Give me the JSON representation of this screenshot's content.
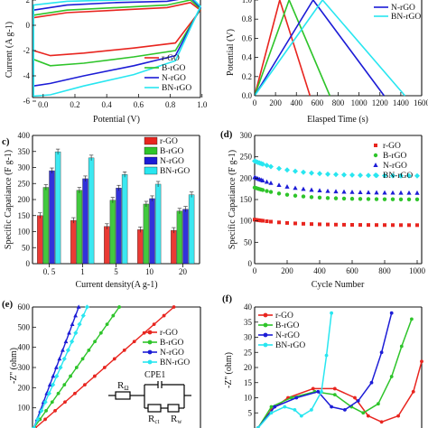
{
  "panels": {
    "c": {
      "label": "c)"
    },
    "d": {
      "label": "(d)"
    },
    "e": {
      "label": "(e)"
    },
    "f": {
      "label": "(f)"
    }
  },
  "circuit": {
    "r_omega": "R",
    "r_omega_sub": "Ω",
    "cpe": "CPE1",
    "r_ct": "R",
    "r_ct_sub": "ct",
    "r_w": "R",
    "r_w_sub": "w"
  },
  "colors": {
    "rGO": "#e8251f",
    "BrGO": "#2ec42a",
    "NrGO": "#1c1cd6",
    "BNrGO": "#28e6f0"
  },
  "chart_data": [
    {
      "id": "a",
      "type": "line",
      "title": "",
      "xlabel": "Potential (V)",
      "ylabel": "Current (A g-1)",
      "xlim": [
        -0.05,
        1.0
      ],
      "ylim": [
        -7,
        2
      ],
      "xticks": [
        "0.0",
        "0.2",
        "0.4",
        "0.6",
        "0.8",
        "1.0"
      ],
      "yticks": [
        "2",
        "0",
        "-2",
        "-4",
        "-6"
      ],
      "legend": {
        "placement": "bottom-right",
        "entries": [
          "r-GO",
          "B-rGO",
          "N-rGO",
          "BN-rGO"
        ]
      },
      "series": [
        {
          "name": "r-GO",
          "color": "#e8251f",
          "upper": [
            [
              0,
              0.6
            ],
            [
              0.2,
              1.0
            ],
            [
              0.5,
              1.2
            ],
            [
              0.8,
              1.4
            ],
            [
              0.94,
              1.8
            ],
            [
              1.0,
              1.2
            ]
          ],
          "lower": [
            [
              0,
              -2.0
            ],
            [
              0.1,
              -2.4
            ],
            [
              0.3,
              -2.2
            ],
            [
              0.6,
              -1.8
            ],
            [
              0.85,
              -1.4
            ],
            [
              1.0,
              1.2
            ]
          ]
        },
        {
          "name": "B-rGO",
          "color": "#2ec42a",
          "upper": [
            [
              0,
              0.8
            ],
            [
              0.2,
              1.2
            ],
            [
              0.5,
              1.4
            ],
            [
              0.8,
              1.6
            ],
            [
              0.94,
              2.0
            ],
            [
              1.0,
              1.3
            ]
          ],
          "lower": [
            [
              0,
              -2.7
            ],
            [
              0.1,
              -3.2
            ],
            [
              0.3,
              -3.0
            ],
            [
              0.6,
              -2.5
            ],
            [
              0.85,
              -2.0
            ],
            [
              1.0,
              1.3
            ]
          ]
        },
        {
          "name": "N-rGO",
          "color": "#1c1cd6",
          "upper": [
            [
              0,
              1.2
            ],
            [
              0.2,
              1.6
            ],
            [
              0.5,
              1.8
            ],
            [
              0.8,
              1.9
            ],
            [
              0.94,
              2.2
            ],
            [
              1.0,
              1.4
            ]
          ],
          "lower": [
            [
              0,
              -4.8
            ],
            [
              0.1,
              -4.6
            ],
            [
              0.3,
              -4.0
            ],
            [
              0.6,
              -3.2
            ],
            [
              0.85,
              -2.4
            ],
            [
              1.0,
              1.4
            ]
          ]
        },
        {
          "name": "BN-rGO",
          "color": "#28e6f0",
          "upper": [
            [
              0,
              1.6
            ],
            [
              0.2,
              1.9
            ],
            [
              0.5,
              2.0
            ],
            [
              0.8,
              2.1
            ],
            [
              0.94,
              2.3
            ],
            [
              1.0,
              1.5
            ]
          ],
          "lower": [
            [
              0,
              -5.6
            ],
            [
              0.1,
              -5.5
            ],
            [
              0.3,
              -4.8
            ],
            [
              0.6,
              -3.9
            ],
            [
              0.85,
              -2.8
            ],
            [
              1.0,
              1.5
            ]
          ]
        }
      ]
    },
    {
      "id": "b",
      "type": "line",
      "title": "",
      "xlabel": "Elasped Time (s)",
      "ylabel": "Potential (V)",
      "xlim": [
        0,
        1600
      ],
      "ylim": [
        0,
        1.0
      ],
      "xticks": [
        "0",
        "200",
        "400",
        "600",
        "800",
        "1000",
        "1200",
        "1400",
        "1600"
      ],
      "yticks": [
        "0.0",
        "0.2",
        "0.4",
        "0.6",
        "0.8",
        "1.0"
      ],
      "legend": {
        "placement": "top-right",
        "entries": [
          "N-rGO",
          "BN-rGO"
        ]
      },
      "series": [
        {
          "name": "r-GO",
          "color": "#e8251f",
          "points": [
            [
              0,
              0
            ],
            [
              240,
              1.0
            ],
            [
              530,
              0
            ]
          ]
        },
        {
          "name": "B-rGO",
          "color": "#2ec42a",
          "points": [
            [
              0,
              0
            ],
            [
              330,
              1.0
            ],
            [
              720,
              0
            ]
          ]
        },
        {
          "name": "N-rGO",
          "color": "#1c1cd6",
          "points": [
            [
              0,
              0
            ],
            [
              560,
              1.0
            ],
            [
              1240,
              0
            ]
          ]
        },
        {
          "name": "BN-rGO",
          "color": "#28e6f0",
          "points": [
            [
              0,
              0
            ],
            [
              650,
              1.0
            ],
            [
              1440,
              0
            ]
          ]
        }
      ]
    },
    {
      "id": "c",
      "type": "bar",
      "title": "",
      "xlabel": "Current density(A g-1)",
      "ylabel": "Specific Capatiance (F g-1)",
      "ylim": [
        0,
        400
      ],
      "yticks": [
        "400",
        "350",
        "300",
        "250",
        "200",
        "150",
        "100",
        "50",
        "0"
      ],
      "categories": [
        "0. 5",
        "1",
        "5",
        "10",
        "20"
      ],
      "legend": {
        "placement": "top-right",
        "entries": [
          "r-GO",
          "B-rGO",
          "N-rGO",
          "BN-rGO"
        ]
      },
      "series": [
        {
          "name": "r-GO",
          "color": "#e8251f",
          "values": [
            150,
            135,
            116,
            106,
            104
          ]
        },
        {
          "name": "B-rGO",
          "color": "#2ec42a",
          "values": [
            238,
            229,
            198,
            186,
            164
          ]
        },
        {
          "name": "N-rGO",
          "color": "#1c1cd6",
          "values": [
            290,
            265,
            236,
            203,
            170
          ]
        },
        {
          "name": "BN-rGO",
          "color": "#28e6f0",
          "values": [
            349,
            330,
            278,
            248,
            215
          ]
        }
      ]
    },
    {
      "id": "d",
      "type": "scatter",
      "title": "",
      "xlabel": "Cycle Number",
      "ylabel": "Specific Capatiance (F g-1)",
      "xlim": [
        0,
        1000
      ],
      "ylim": [
        0,
        300
      ],
      "xticks": [
        "0",
        "200",
        "400",
        "600",
        "800",
        "1000"
      ],
      "yticks": [
        "300",
        "250",
        "200",
        "150",
        "100",
        "50",
        "0"
      ],
      "legend": {
        "placement": "top-right",
        "entries": [
          "r-GO",
          "B-rGO",
          "N-rGO",
          "BN-rGO"
        ]
      },
      "series": [
        {
          "name": "r-GO",
          "color": "#e8251f",
          "start": 103,
          "end": 90
        },
        {
          "name": "B-rGO",
          "color": "#2ec42a",
          "start": 178,
          "end": 150
        },
        {
          "name": "N-rGO",
          "color": "#1c1cd6",
          "start": 202,
          "end": 165
        },
        {
          "name": "BN-rGO",
          "color": "#28e6f0",
          "start": 240,
          "end": 205
        }
      ]
    },
    {
      "id": "e",
      "type": "line",
      "title": "",
      "xlabel": "",
      "ylabel": "-Z'' (ohm)",
      "xlim": [
        0,
        600
      ],
      "ylim": [
        0,
        600
      ],
      "yticks": [
        "600",
        "500",
        "400",
        "300",
        "200",
        "100"
      ],
      "legend": {
        "placement": "right",
        "entries": [
          "r-GO",
          "B-rGO",
          "N-rGO",
          "BN-rGO"
        ]
      },
      "series": [
        {
          "name": "r-GO",
          "color": "#e8251f",
          "points": [
            [
              10,
              0
            ],
            [
              505,
              600
            ]
          ]
        },
        {
          "name": "B-rGO",
          "color": "#2ec42a",
          "points": [
            [
              5,
              0
            ],
            [
              310,
              600
            ]
          ]
        },
        {
          "name": "N-rGO",
          "color": "#1c1cd6",
          "points": [
            [
              5,
              0
            ],
            [
              165,
              600
            ]
          ]
        },
        {
          "name": "BN-rGO",
          "color": "#28e6f0",
          "points": [
            [
              5,
              0
            ],
            [
              195,
              600
            ]
          ]
        }
      ]
    },
    {
      "id": "f",
      "type": "line",
      "title": "",
      "xlabel": "",
      "ylabel": "-Z'' (ohm)",
      "xlim": [
        0,
        100
      ],
      "ylim": [
        0,
        40
      ],
      "yticks": [
        "40",
        "35",
        "30",
        "25",
        "20",
        "15",
        "10",
        "5"
      ],
      "legend": {
        "placement": "top-left",
        "entries": [
          "r-GO",
          "B-rGO",
          "N-rGO",
          "BN-rGO"
        ]
      },
      "series": [
        {
          "name": "r-GO",
          "color": "#e8251f",
          "points": [
            [
              2,
              0
            ],
            [
              10,
              6
            ],
            [
              20,
              10
            ],
            [
              35,
              13
            ],
            [
              48,
              13
            ],
            [
              60,
              10
            ],
            [
              68,
              4
            ],
            [
              76,
              2
            ],
            [
              86,
              4
            ],
            [
              95,
              12
            ],
            [
              100,
              22
            ]
          ]
        },
        {
          "name": "B-rGO",
          "color": "#2ec42a",
          "points": [
            [
              2,
              0
            ],
            [
              10,
              7
            ],
            [
              22,
              10
            ],
            [
              36,
              12
            ],
            [
              48,
              11
            ],
            [
              58,
              7
            ],
            [
              65,
              5
            ],
            [
              74,
              8
            ],
            [
              82,
              17
            ],
            [
              88,
              27
            ],
            [
              94,
              36
            ]
          ]
        },
        {
          "name": "N-rGO",
          "color": "#1c1cd6",
          "points": [
            [
              2,
              0
            ],
            [
              12,
              7
            ],
            [
              25,
              10
            ],
            [
              38,
              12
            ],
            [
              46,
              7
            ],
            [
              54,
              6
            ],
            [
              62,
              9
            ],
            [
              70,
              15
            ],
            [
              76,
              25
            ],
            [
              82,
              38
            ]
          ]
        },
        {
          "name": "BN-rGO",
          "color": "#28e6f0",
          "points": [
            [
              2,
              0
            ],
            [
              10,
              5
            ],
            [
              18,
              7
            ],
            [
              24,
              6
            ],
            [
              28,
              4
            ],
            [
              34,
              6
            ],
            [
              40,
              12
            ],
            [
              43,
              24
            ],
            [
              46,
              38
            ]
          ]
        }
      ]
    }
  ]
}
